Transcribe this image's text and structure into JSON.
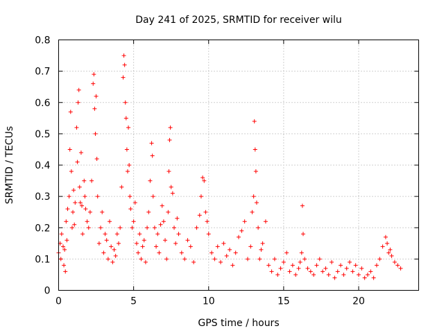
{
  "chart_data": {
    "type": "scatter",
    "title": "Day 241 of 2025, SRMTID for receiver wilu",
    "xlabel": "GPS time / hours",
    "ylabel": "SRMTID / TECUs",
    "xlim": [
      0,
      24
    ],
    "ylim": [
      0,
      0.8
    ],
    "xticks": [
      0,
      5,
      10,
      15,
      20
    ],
    "yticks": [
      0,
      0.1,
      0.2,
      0.3,
      0.4,
      0.5,
      0.6,
      0.7,
      0.8
    ],
    "grid": true,
    "marker": "+",
    "color": "#ff0000",
    "series": [
      {
        "name": "SRMTID",
        "x": [
          0.0,
          0.1,
          0.15,
          0.2,
          0.3,
          0.35,
          0.4,
          0.45,
          0.5,
          0.55,
          0.6,
          0.7,
          0.75,
          0.8,
          0.85,
          0.9,
          0.95,
          1.0,
          1.05,
          1.1,
          1.2,
          1.25,
          1.3,
          1.35,
          1.4,
          1.45,
          1.5,
          1.55,
          1.6,
          1.7,
          1.75,
          1.8,
          1.9,
          2.0,
          2.1,
          2.2,
          2.3,
          2.35,
          2.4,
          2.45,
          2.5,
          2.55,
          2.6,
          2.7,
          2.8,
          2.9,
          3.0,
          3.1,
          3.2,
          3.3,
          3.4,
          3.5,
          3.6,
          3.7,
          3.8,
          3.9,
          4.0,
          4.1,
          4.2,
          4.3,
          4.35,
          4.4,
          4.45,
          4.5,
          4.55,
          4.6,
          4.65,
          4.7,
          4.75,
          4.8,
          4.9,
          5.0,
          5.1,
          5.2,
          5.3,
          5.4,
          5.5,
          5.6,
          5.7,
          5.8,
          5.9,
          6.0,
          6.1,
          6.2,
          6.25,
          6.3,
          6.4,
          6.5,
          6.6,
          6.7,
          6.8,
          6.9,
          7.0,
          7.1,
          7.2,
          7.3,
          7.35,
          7.4,
          7.45,
          7.5,
          7.6,
          7.7,
          7.8,
          7.9,
          8.0,
          8.2,
          8.4,
          8.6,
          8.8,
          9.0,
          9.2,
          9.4,
          9.5,
          9.6,
          9.7,
          9.8,
          9.9,
          10.0,
          10.2,
          10.4,
          10.6,
          10.8,
          11.0,
          11.2,
          11.4,
          11.6,
          11.8,
          12.0,
          12.2,
          12.4,
          12.6,
          12.8,
          12.9,
          13.0,
          13.05,
          13.1,
          13.15,
          13.2,
          13.3,
          13.4,
          13.5,
          13.6,
          13.8,
          14.0,
          14.2,
          14.4,
          14.6,
          14.8,
          15.0,
          15.2,
          15.4,
          15.6,
          15.8,
          16.0,
          16.1,
          16.2,
          16.25,
          16.3,
          16.4,
          16.6,
          16.8,
          17.0,
          17.2,
          17.4,
          17.6,
          17.8,
          18.0,
          18.2,
          18.4,
          18.6,
          18.8,
          19.0,
          19.2,
          19.4,
          19.6,
          19.8,
          20.0,
          20.2,
          20.4,
          20.6,
          20.8,
          21.0,
          21.2,
          21.4,
          21.6,
          21.8,
          21.9,
          22.0,
          22.1,
          22.2,
          22.4,
          22.6,
          22.8
        ],
        "y": [
          0.12,
          0.15,
          0.1,
          0.18,
          0.14,
          0.08,
          0.13,
          0.06,
          0.22,
          0.16,
          0.26,
          0.3,
          0.45,
          0.57,
          0.38,
          0.2,
          0.25,
          0.32,
          0.21,
          0.28,
          0.52,
          0.41,
          0.6,
          0.64,
          0.33,
          0.28,
          0.44,
          0.27,
          0.18,
          0.35,
          0.3,
          0.26,
          0.22,
          0.2,
          0.25,
          0.35,
          0.66,
          0.69,
          0.58,
          0.5,
          0.62,
          0.42,
          0.3,
          0.15,
          0.2,
          0.25,
          0.12,
          0.18,
          0.16,
          0.1,
          0.22,
          0.14,
          0.09,
          0.13,
          0.11,
          0.18,
          0.15,
          0.2,
          0.33,
          0.68,
          0.75,
          0.72,
          0.6,
          0.55,
          0.45,
          0.38,
          0.52,
          0.4,
          0.3,
          0.26,
          0.2,
          0.22,
          0.28,
          0.15,
          0.12,
          0.18,
          0.1,
          0.14,
          0.16,
          0.09,
          0.2,
          0.25,
          0.35,
          0.47,
          0.43,
          0.3,
          0.2,
          0.14,
          0.18,
          0.12,
          0.21,
          0.27,
          0.22,
          0.16,
          0.1,
          0.25,
          0.38,
          0.48,
          0.52,
          0.33,
          0.31,
          0.2,
          0.15,
          0.23,
          0.18,
          0.12,
          0.1,
          0.16,
          0.14,
          0.09,
          0.2,
          0.24,
          0.3,
          0.36,
          0.35,
          0.25,
          0.22,
          0.18,
          0.12,
          0.1,
          0.14,
          0.09,
          0.15,
          0.11,
          0.13,
          0.08,
          0.12,
          0.17,
          0.19,
          0.22,
          0.1,
          0.14,
          0.25,
          0.3,
          0.54,
          0.45,
          0.38,
          0.28,
          0.2,
          0.1,
          0.13,
          0.15,
          0.22,
          0.08,
          0.06,
          0.1,
          0.05,
          0.07,
          0.09,
          0.12,
          0.06,
          0.08,
          0.05,
          0.07,
          0.09,
          0.12,
          0.27,
          0.18,
          0.1,
          0.07,
          0.06,
          0.05,
          0.08,
          0.1,
          0.06,
          0.07,
          0.05,
          0.09,
          0.04,
          0.06,
          0.08,
          0.05,
          0.07,
          0.09,
          0.06,
          0.08,
          0.05,
          0.07,
          0.04,
          0.05,
          0.06,
          0.04,
          0.08,
          0.1,
          0.14,
          0.17,
          0.15,
          0.12,
          0.13,
          0.11,
          0.09,
          0.08,
          0.07
        ]
      }
    ]
  }
}
